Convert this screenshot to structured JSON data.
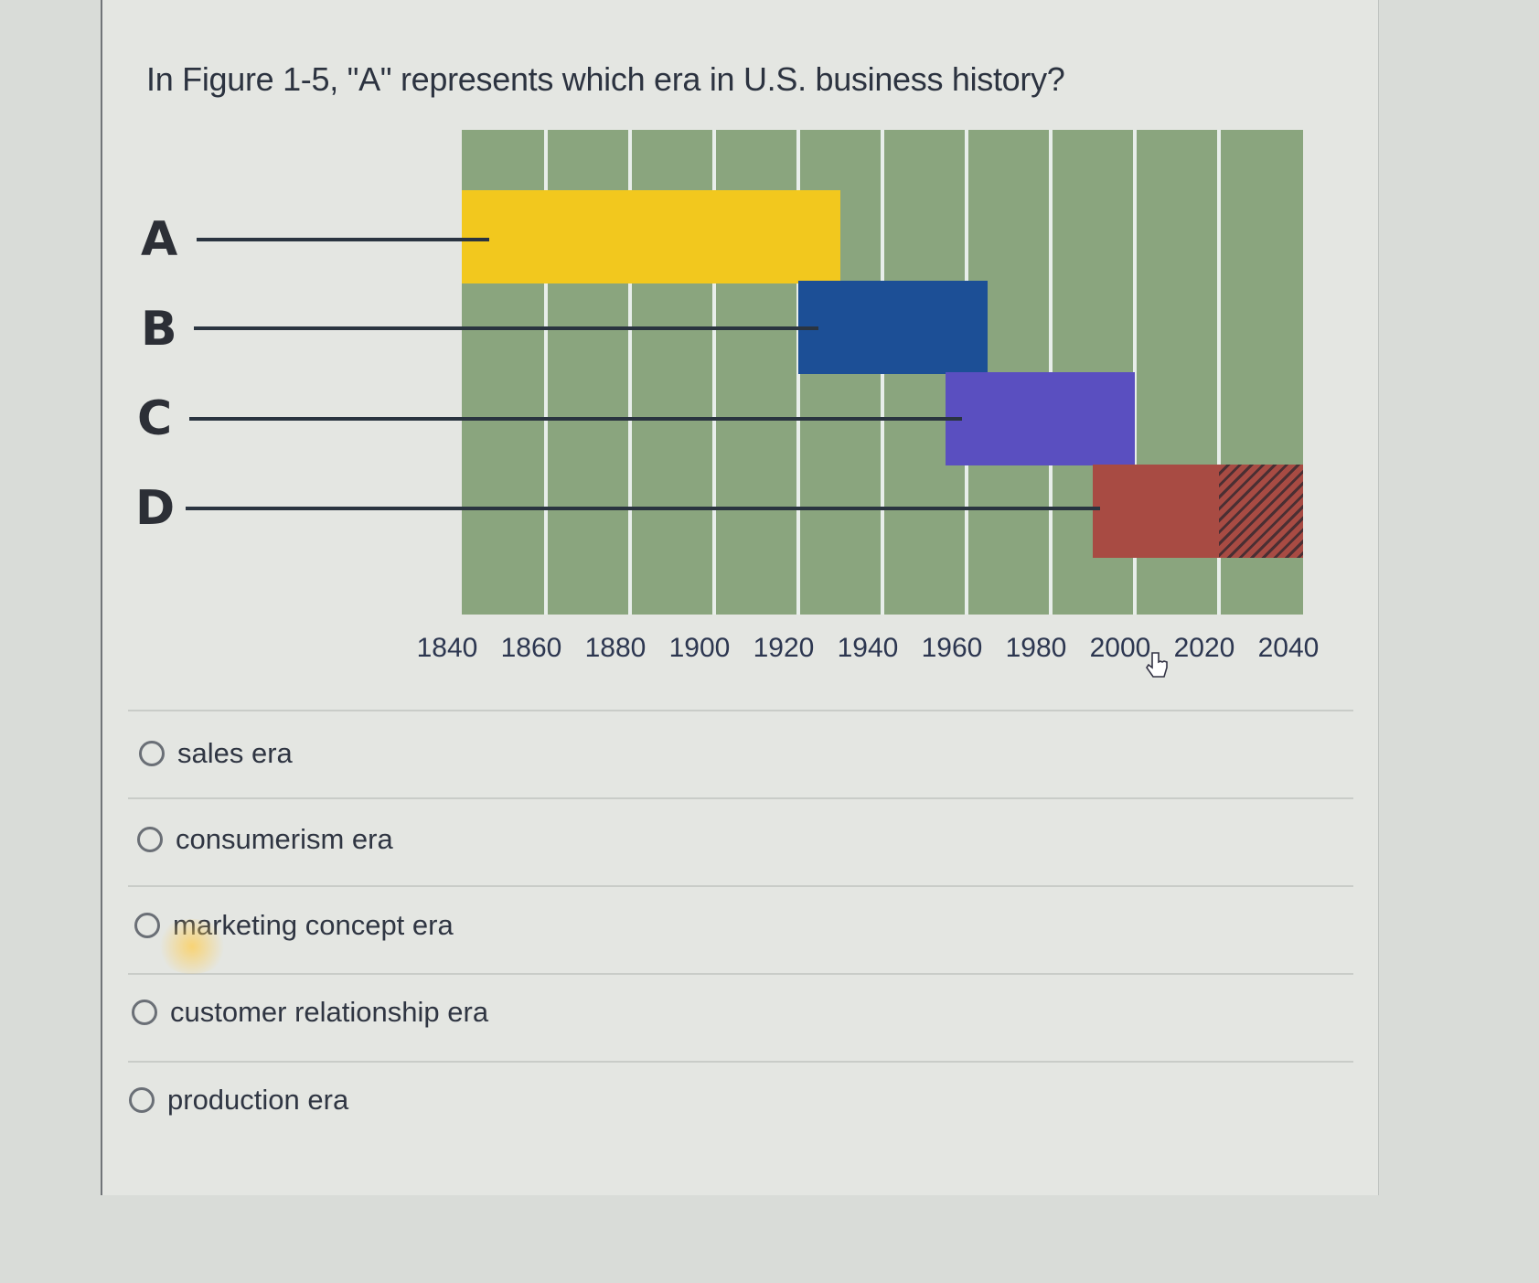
{
  "question": {
    "text": "In Figure 1-5, \"A\" represents which era in U.S. business history?"
  },
  "colors": {
    "chart_background": "#8aa57e",
    "grid_line": "#e8eeea",
    "bar_A": "#f2c81e",
    "bar_B": "#1c4f96",
    "bar_C": "#5a4fc0",
    "bar_D": "#a84b43"
  },
  "chart_data": {
    "type": "bar",
    "orientation": "horizontal-timeline",
    "title": "Figure 1-5",
    "xlabel": "",
    "ylabel": "",
    "x_ticks": [
      "1840",
      "1860",
      "1880",
      "1900",
      "1920",
      "1940",
      "1960",
      "1980",
      "2000",
      "2020",
      "2040"
    ],
    "xlim": [
      1840,
      2040
    ],
    "grid": "vertical lines every 20 years",
    "legend": "none",
    "categories": [
      "A",
      "B",
      "C",
      "D"
    ],
    "series": [
      {
        "name": "A",
        "start": 1840,
        "end": 1930,
        "color": "#f2c81e"
      },
      {
        "name": "B",
        "start": 1920,
        "end": 1965,
        "color": "#1c4f96"
      },
      {
        "name": "C",
        "start": 1955,
        "end": 2000,
        "color": "#5a4fc0"
      },
      {
        "name": "D",
        "start": 1990,
        "end": 2040,
        "color": "#a84b43",
        "hatched_from": 2020
      }
    ]
  },
  "options": [
    {
      "label": "sales era"
    },
    {
      "label": "consumerism era"
    },
    {
      "label": "marketing concept era"
    },
    {
      "label": "customer relationship era"
    },
    {
      "label": "production era"
    }
  ]
}
